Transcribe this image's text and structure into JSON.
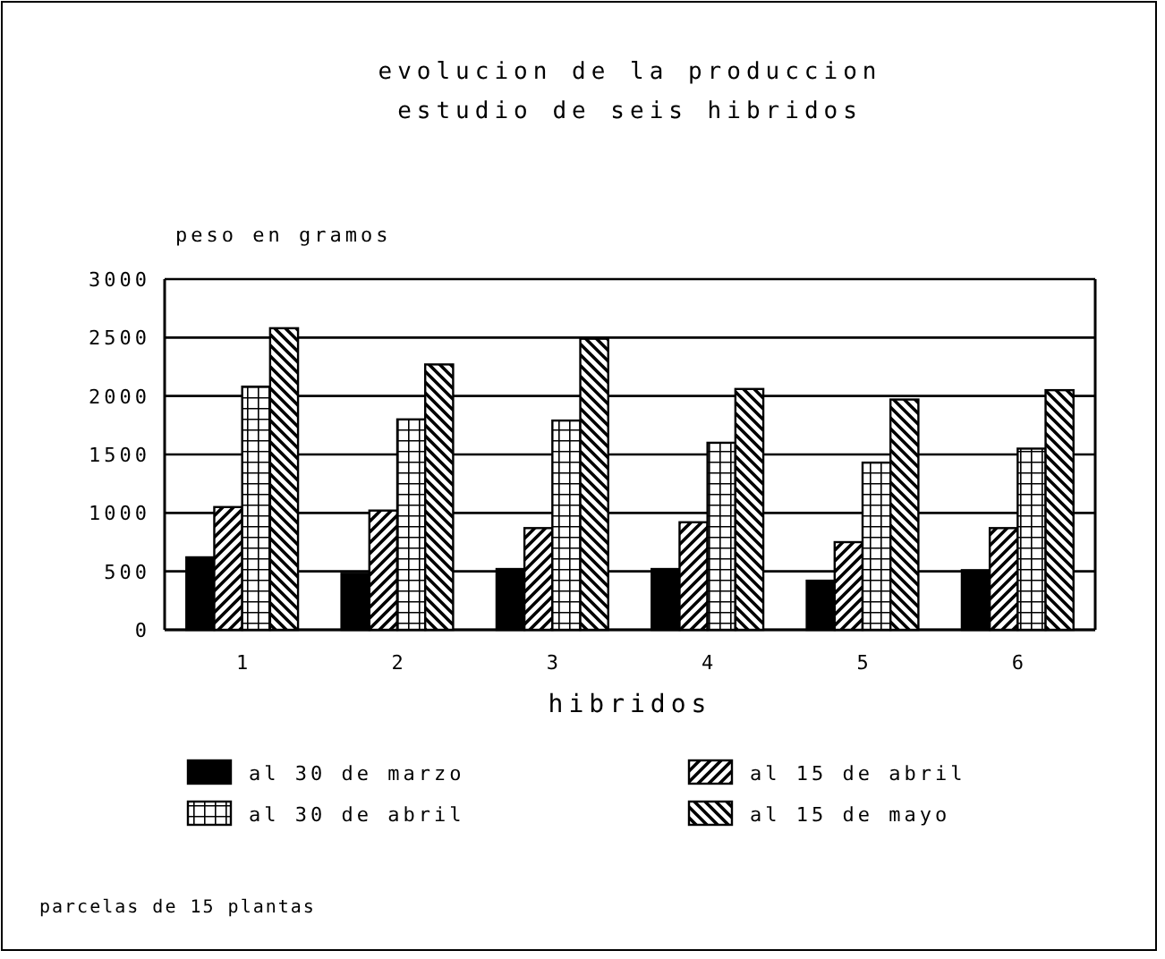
{
  "chart_data": {
    "type": "bar",
    "title": "evolucion de la produccion",
    "subtitle": "estudio de seis hibridos",
    "ylabel": "peso en gramos",
    "xlabel": "hibridos",
    "categories": [
      "1",
      "2",
      "3",
      "4",
      "5",
      "6"
    ],
    "series": [
      {
        "name": "al 30 de marzo",
        "color": "#000000",
        "values": [
          620,
          480,
          520,
          520,
          420,
          510
        ]
      },
      {
        "name": "al 15 de abril",
        "color": "#000000",
        "values": [
          1050,
          1020,
          870,
          920,
          750,
          870
        ]
      },
      {
        "name": "al 30 de abril",
        "color": "#000000",
        "values": [
          2080,
          1800,
          1790,
          1600,
          1430,
          1550
        ]
      },
      {
        "name": "al 15 de mayo",
        "color": "#000000",
        "values": [
          2580,
          2270,
          2490,
          2060,
          1970,
          2050
        ]
      }
    ],
    "ylim": [
      0,
      3000
    ],
    "yticks": [
      0,
      500,
      1000,
      1500,
      2000,
      2500,
      3000
    ],
    "grid": "y",
    "legend": "bottom",
    "annotations": [
      "parcelas de 15 plantas"
    ]
  }
}
